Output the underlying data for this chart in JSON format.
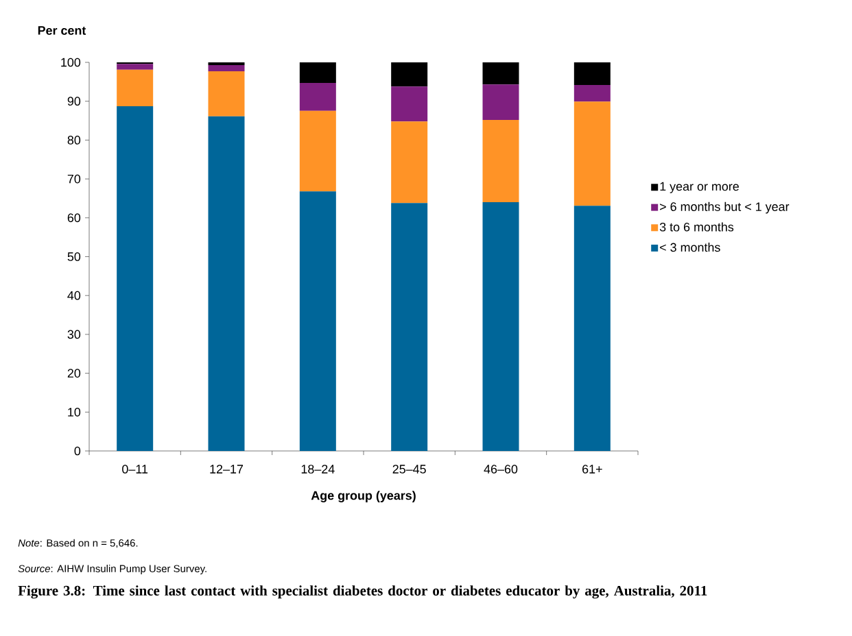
{
  "chart_data": {
    "type": "bar",
    "stacked": true,
    "title": "Figure 3.8: Time since last contact with specialist diabetes doctor or diabetes educator by age, Australia, 2011",
    "xlabel": "Age group (years)",
    "ylabel": "Per cent",
    "categories": [
      "0–11",
      "12–17",
      "18–24",
      "25–45",
      "46–60",
      "61+"
    ],
    "series": [
      {
        "name": "< 3 months",
        "color": "#006699",
        "values": [
          88.7,
          86.1,
          66.8,
          63.8,
          64.0,
          63.1
        ]
      },
      {
        "name": "3 to 6 months",
        "color": "#ff9326",
        "values": [
          9.4,
          11.6,
          20.7,
          21.0,
          21.2,
          26.8
        ]
      },
      {
        "name": "> 6 months but < 1 year",
        "color": "#7f1f7f",
        "values": [
          1.5,
          1.6,
          7.2,
          9.0,
          9.1,
          4.3
        ]
      },
      {
        "name": "1 year or more",
        "color": "#000000",
        "values": [
          0.4,
          0.7,
          5.3,
          6.2,
          5.7,
          5.8
        ]
      }
    ],
    "ylim": [
      0,
      100
    ],
    "yticks": [
      0,
      10,
      20,
      30,
      40,
      50,
      60,
      70,
      80,
      90,
      100
    ],
    "legend": "right",
    "grid": false,
    "annotations": [
      "*Note*: Based on n = 5,646.",
      "*Source*: AIHW Insulin Pump User Survey."
    ]
  }
}
